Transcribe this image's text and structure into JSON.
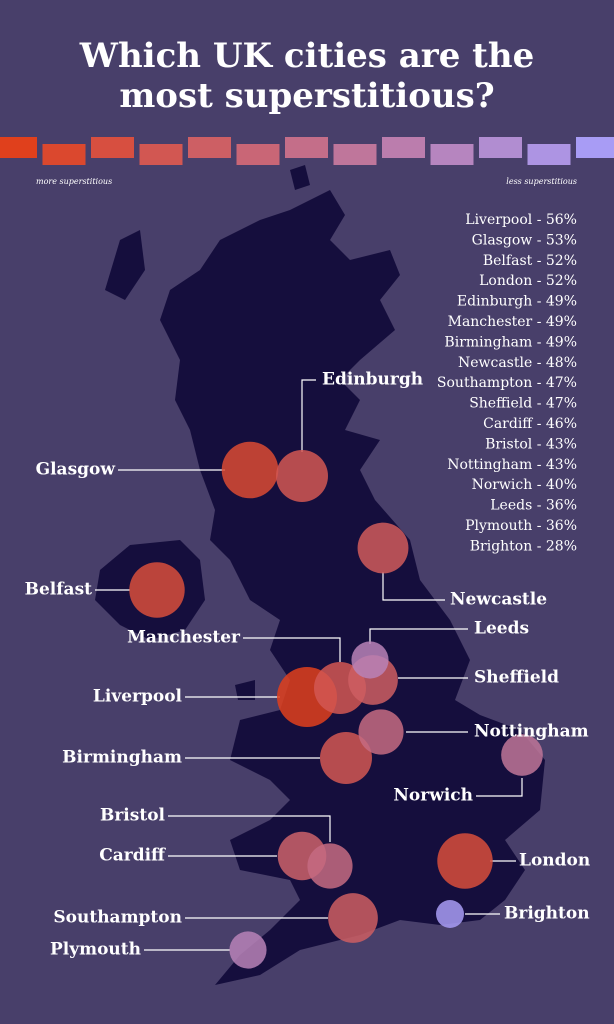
{
  "title_lines": [
    "Which UK cities are the",
    "most superstitious?"
  ],
  "scale": {
    "more_label": "more superstitious",
    "less_label": "less superstitious",
    "colors": [
      "#e0401c",
      "#a89cf5"
    ]
  },
  "cities": [
    {
      "name": "Liverpool",
      "value": 56,
      "list_label": "Liverpool - 56%"
    },
    {
      "name": "Glasgow",
      "value": 53,
      "list_label": "Glasgow - 53%"
    },
    {
      "name": "Belfast",
      "value": 52,
      "list_label": "Belfast - 52%"
    },
    {
      "name": "London",
      "value": 52,
      "list_label": "London - 52%"
    },
    {
      "name": "Edinburgh",
      "value": 49,
      "list_label": "Edinburgh - 49%"
    },
    {
      "name": "Manchester",
      "value": 49,
      "list_label": "Manchester - 49%"
    },
    {
      "name": "Birmingham",
      "value": 49,
      "list_label": "Birmingham - 49%"
    },
    {
      "name": "Newcastle",
      "value": 48,
      "list_label": "Newcastle - 48%"
    },
    {
      "name": "Southampton",
      "value": 47,
      "list_label": "Southampton - 47%"
    },
    {
      "name": "Sheffield",
      "value": 47,
      "list_label": "Sheffield - 47%"
    },
    {
      "name": "Cardiff",
      "value": 46,
      "list_label": "Cardiff - 46%"
    },
    {
      "name": "Bristol",
      "value": 43,
      "list_label": "Bristol - 43%"
    },
    {
      "name": "Nottingham",
      "value": 43,
      "list_label": "Nottingham - 43%"
    },
    {
      "name": "Norwich",
      "value": 40,
      "list_label": "Norwich - 40%"
    },
    {
      "name": "Leeds",
      "value": 36,
      "list_label": "Leeds - 36%"
    },
    {
      "name": "Plymouth",
      "value": 36,
      "list_label": "Plymouth - 36%"
    },
    {
      "name": "Brighton",
      "value": 28,
      "list_label": "Brighton - 28%"
    }
  ]
}
